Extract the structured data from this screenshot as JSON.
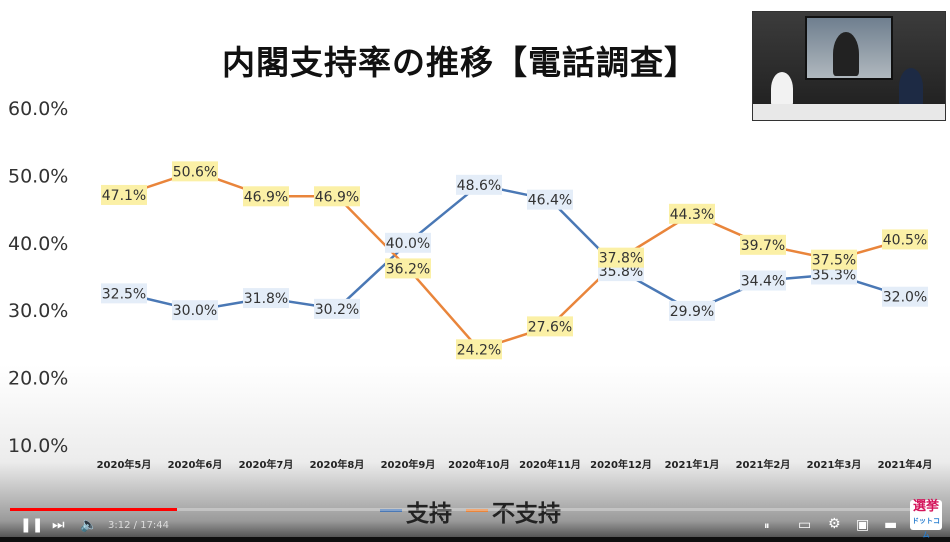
{
  "title": "内閣支持率の推移【電話調査】",
  "chart_data": {
    "type": "line",
    "title": "内閣支持率の推移【電話調査】",
    "categories": [
      "2020年5月",
      "2020年6月",
      "2020年7月",
      "2020年8月",
      "2020年9月",
      "2020年10月",
      "2020年11月",
      "2020年12月",
      "2021年1月",
      "2021年2月",
      "2021年3月",
      "2021年4月"
    ],
    "y_ticks": [
      "10.0%",
      "20.0%",
      "30.0%",
      "40.0%",
      "50.0%",
      "60.0%"
    ],
    "ylim": [
      10,
      60
    ],
    "legend_position": "bottom",
    "grid": false,
    "series": [
      {
        "name": "支持",
        "color": "#4a78b5",
        "label_bg": "#e4edf8",
        "values": [
          32.5,
          30.0,
          31.8,
          30.2,
          40.0,
          48.6,
          46.4,
          35.8,
          29.9,
          34.4,
          35.3,
          32.0
        ],
        "labels": [
          "32.5%",
          "30.0%",
          "31.8%",
          "30.2%",
          "40.0%",
          "48.6%",
          "46.4%",
          "35.8%",
          "29.9%",
          "34.4%",
          "35.3%",
          "32.0%"
        ]
      },
      {
        "name": "不支持",
        "color": "#e9853b",
        "label_bg": "#fbf0a6",
        "values": [
          47.1,
          50.6,
          46.9,
          46.9,
          36.2,
          24.2,
          27.6,
          37.8,
          44.3,
          39.7,
          37.5,
          40.5
        ],
        "labels": [
          "47.1%",
          "50.6%",
          "46.9%",
          "46.9%",
          "36.2%",
          "24.2%",
          "27.6%",
          "37.8%",
          "44.3%",
          "39.7%",
          "37.5%",
          "40.5%"
        ]
      }
    ]
  },
  "player": {
    "time_current": "3:12",
    "time_total": "17:44",
    "progress": 0.18
  },
  "logo": {
    "text": "選挙",
    "sub": "ドットコム"
  }
}
